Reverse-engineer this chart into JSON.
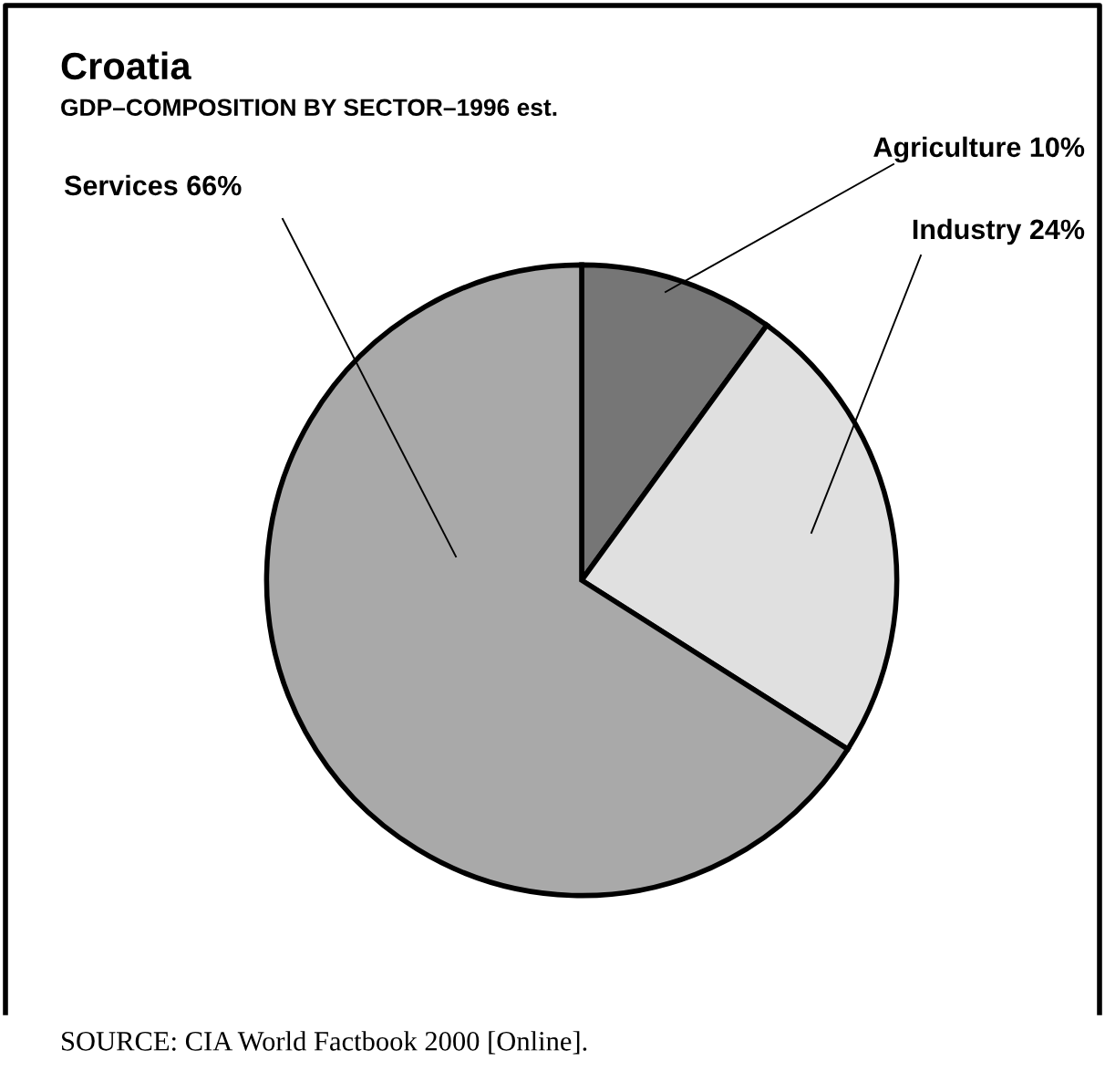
{
  "chart_data": {
    "type": "pie",
    "title": "Croatia",
    "subtitle": "GDP–COMPOSITION BY SECTOR–1996 est.",
    "categories": [
      "Agriculture",
      "Industry",
      "Services"
    ],
    "values": [
      10,
      24,
      66
    ],
    "value_labels": [
      "10%",
      "24%",
      "66%"
    ],
    "colors": [
      "#767676",
      "#e0e0e0",
      "#a9a9a9"
    ],
    "annotations": [
      "SOURCE: CIA World Factbook 2000 [Online]."
    ]
  }
}
